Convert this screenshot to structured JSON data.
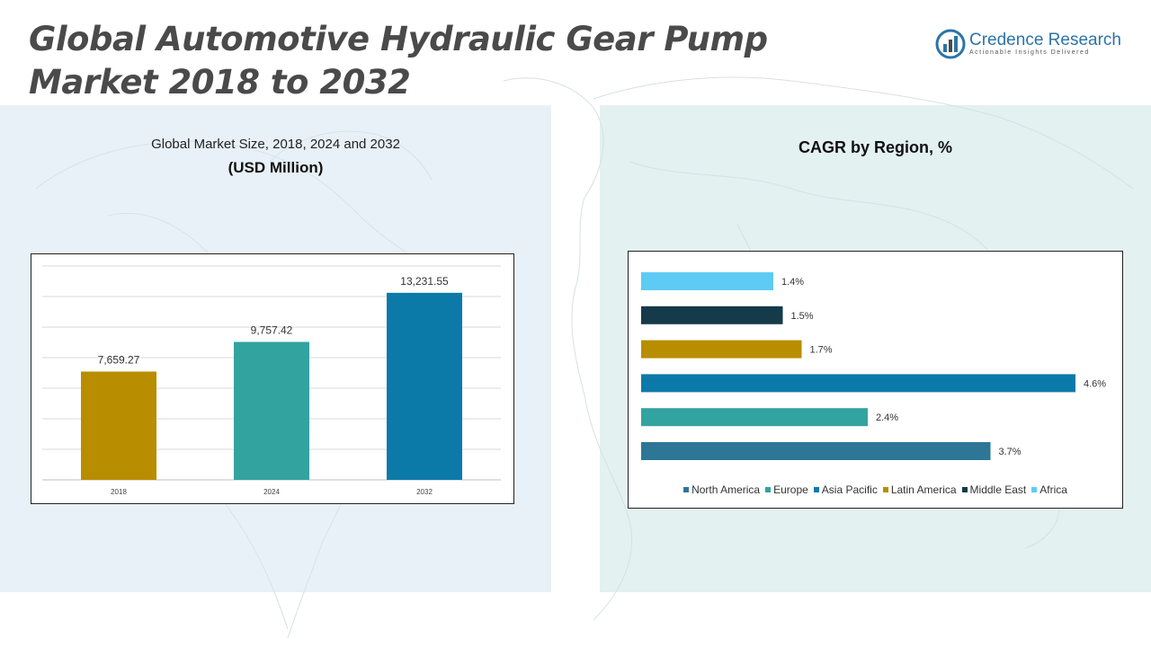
{
  "page": {
    "title_line1": "Global Automotive Hydraulic Gear Pump",
    "title_line2": "Market 2018 to 2032"
  },
  "logo": {
    "name": "Credence Research",
    "tagline": "Actionable Insights Delivered",
    "icon": "bar-chart-logo-icon"
  },
  "left_panel": {
    "subtitle": "Global Market Size, 2018, 2024 and 2032",
    "unit": "(USD Million)"
  },
  "right_panel": {
    "title": "CAGR by Region, %"
  },
  "chart_data": [
    {
      "type": "bar",
      "categories": [
        "2018",
        "2024",
        "2032"
      ],
      "values": [
        7659.27,
        9757.42,
        13231.55
      ],
      "value_labels": [
        "7,659.27",
        "9,757.42",
        "13,231.55"
      ],
      "colors": [
        "#b98d00",
        "#33a3a0",
        "#0c7aa9"
      ],
      "ylim": [
        0,
        15000
      ],
      "grid": true
    },
    {
      "type": "bar",
      "orientation": "horizontal",
      "categories": [
        "Africa",
        "Middle East",
        "Latin America",
        "Asia Pacific",
        "Europe",
        "North America"
      ],
      "values": [
        1.4,
        1.5,
        1.7,
        4.6,
        2.4,
        3.7
      ],
      "value_labels": [
        "1.4%",
        "1.5%",
        "1.7%",
        "4.6%",
        "2.4%",
        "3.7%"
      ],
      "colors": [
        "#5ecbf5",
        "#153a4a",
        "#b98d00",
        "#0c7aa9",
        "#33a3a0",
        "#2e7696"
      ],
      "xlim": [
        0,
        4.6
      ],
      "legend": {
        "position": "bottom",
        "entries": [
          {
            "label": "North America",
            "color": "#2e7696"
          },
          {
            "label": "Europe",
            "color": "#33a3a0"
          },
          {
            "label": "Asia Pacific",
            "color": "#0c7aa9"
          },
          {
            "label": "Latin America",
            "color": "#b98d00"
          },
          {
            "label": "Middle East",
            "color": "#153a4a"
          },
          {
            "label": "Africa",
            "color": "#5ecbf5"
          }
        ]
      }
    }
  ]
}
